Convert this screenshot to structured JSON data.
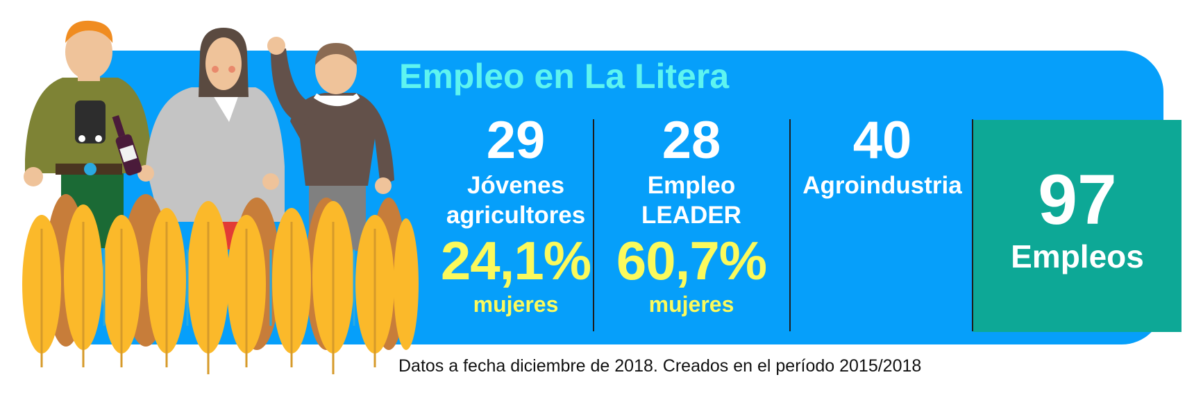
{
  "title": "Empleo en La Litera",
  "stats": [
    {
      "number": "29",
      "label_lines": [
        "Jóvenes",
        "agricultores"
      ],
      "percent": "24,1%",
      "percent_label": "mujeres"
    },
    {
      "number": "28",
      "label_lines": [
        "Empleo",
        "LEADER"
      ],
      "percent": "60,7%",
      "percent_label": "mujeres"
    },
    {
      "number": "40",
      "label_lines": [
        "Agroindustria"
      ]
    }
  ],
  "total": {
    "number": "97",
    "label": "Empleos"
  },
  "footnote": "Datos a fecha diciembre de 2018. Creados en el período 2015/2018",
  "colors": {
    "banner": "#069ffa",
    "title": "#5ef4f0",
    "highlight": "#fbfa5c",
    "total_box": "#0da896",
    "wheat": "#fbb92a"
  },
  "illustration": {
    "description_icon": "farmers-wheat-illustration"
  }
}
